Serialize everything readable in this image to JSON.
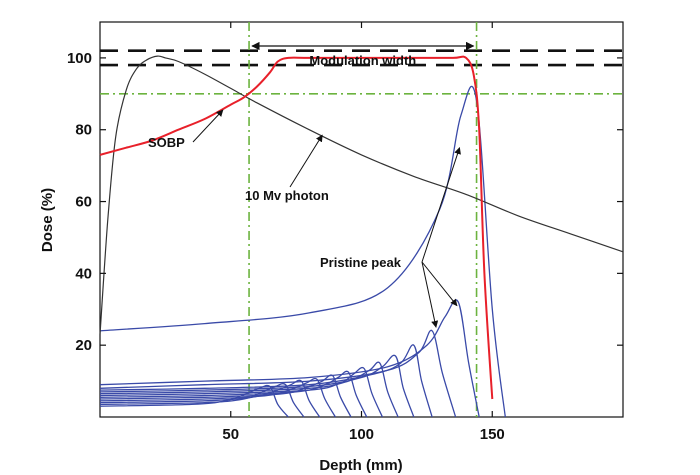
{
  "chart_data": {
    "type": "line",
    "xlabel": "Depth (mm)",
    "ylabel": "Dose (%)",
    "xlim": [
      0,
      200
    ],
    "ylim": [
      0,
      110
    ],
    "xticks": [
      50,
      100,
      150
    ],
    "yticks": [
      20,
      40,
      60,
      80,
      100
    ],
    "grid": false,
    "legend": "none",
    "colors": {
      "sobp": "#e8202a",
      "photon": "#333333",
      "pristine": "#3a4aa8",
      "guide": "#6cb33f",
      "tolerance": "#111111"
    },
    "reference_lines": {
      "horizontal_dashed": [
        102,
        98
      ],
      "horizontal_guide": 90,
      "vertical_guides": [
        57,
        144
      ]
    },
    "annotations": {
      "modulation_width": "Modulation width",
      "sobp": "SOBP",
      "photon": "10 Mv photon",
      "pristine_peak": "Pristine peak"
    },
    "series": [
      {
        "name": "SOBP",
        "x": [
          0,
          10,
          20,
          30,
          40,
          50,
          55,
          60,
          65,
          68,
          72,
          80,
          100,
          120,
          135,
          140,
          143,
          145,
          147,
          150
        ],
        "y": [
          73,
          75,
          77,
          80,
          83,
          87,
          89,
          92,
          96,
          99,
          100,
          100,
          100,
          100,
          100,
          100,
          95,
          80,
          40,
          5
        ]
      },
      {
        "name": "10 Mv photon",
        "x": [
          0,
          3,
          6,
          10,
          14,
          18,
          22,
          25,
          30,
          40,
          50,
          60,
          80,
          100,
          120,
          140,
          160,
          180,
          200
        ],
        "y": [
          23,
          55,
          78,
          91,
          97,
          99.5,
          100.5,
          100,
          99,
          95.5,
          91.5,
          87.5,
          80,
          73,
          67,
          62,
          56,
          51,
          46
        ]
      },
      {
        "name": "Pristine peak",
        "peaks": [
          {
            "x": [
              0,
              40,
              80,
              110,
              130,
              138,
              144,
              150,
              155
            ],
            "y": [
              24,
              26,
              29,
              36,
              58,
              84,
              88,
              30,
              0
            ]
          },
          {
            "x": [
              0,
              40,
              80,
              110,
              125,
              132,
              137,
              141,
              145
            ],
            "y": [
              9,
              10,
              11,
              14,
              20,
              28,
              32,
              15,
              0
            ]
          },
          {
            "x": [
              0,
              40,
              80,
              110,
              122,
              127,
              131,
              136
            ],
            "y": [
              8,
              9,
              10,
              13,
              18,
              24,
              12,
              0
            ]
          },
          {
            "x": [
              0,
              40,
              80,
              105,
              115,
              120,
              123,
              127
            ],
            "y": [
              7.5,
              8,
              9,
              12,
              15,
              20,
              10,
              0
            ]
          },
          {
            "x": [
              0,
              40,
              80,
              100,
              108,
              113,
              116,
              120
            ],
            "y": [
              7,
              7.5,
              8.5,
              11,
              14,
              17,
              8,
              0
            ]
          },
          {
            "x": [
              0,
              40,
              80,
              95,
              103,
              107,
              110,
              114
            ],
            "y": [
              6.5,
              7,
              8,
              10,
              13,
              15,
              7,
              0
            ]
          },
          {
            "x": [
              0,
              40,
              80,
              92,
              97,
              101,
              104,
              108
            ],
            "y": [
              6,
              6.5,
              7.5,
              9.5,
              12,
              13.5,
              6.5,
              0
            ]
          },
          {
            "x": [
              0,
              40,
              75,
              86,
              91,
              95,
              98,
              102
            ],
            "y": [
              5.5,
              6,
              7,
              9,
              11,
              12.5,
              6,
              0
            ]
          },
          {
            "x": [
              0,
              40,
              70,
              80,
              85,
              89,
              92,
              96
            ],
            "y": [
              5,
              5.5,
              6.5,
              8.5,
              10,
              11.5,
              5.5,
              0
            ]
          },
          {
            "x": [
              0,
              40,
              64,
              74,
              79,
              83,
              86,
              90
            ],
            "y": [
              4.5,
              5,
              6,
              8,
              9.5,
              10.5,
              5,
              0
            ]
          },
          {
            "x": [
              0,
              40,
              58,
              68,
              73,
              77,
              80,
              84
            ],
            "y": [
              4,
              4.5,
              5.5,
              7.5,
              9,
              10,
              4.5,
              0
            ]
          },
          {
            "x": [
              0,
              40,
              55,
              62,
              67,
              71,
              74,
              78
            ],
            "y": [
              3.5,
              4,
              5,
              7,
              8.5,
              9,
              4,
              0
            ]
          },
          {
            "x": [
              0,
              35,
              48,
              56,
              61,
              65,
              68,
              72
            ],
            "y": [
              3,
              3.5,
              4.5,
              6.5,
              8,
              8.5,
              3.5,
              0
            ]
          }
        ]
      }
    ]
  }
}
